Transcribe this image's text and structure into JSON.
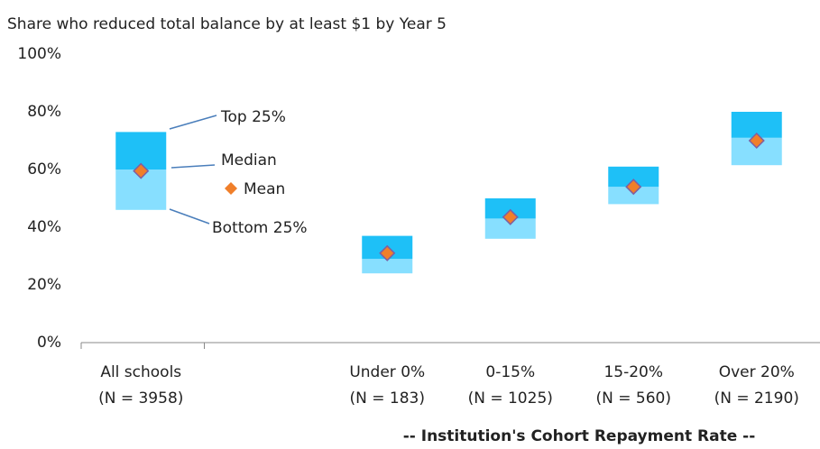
{
  "chart_data": {
    "type": "box",
    "title": "Share who reduced total balance by at least $1 by Year 5",
    "x_label": "-- Institution's Cohort Repayment Rate --",
    "categories": [
      "All schools",
      null,
      "Under 0%",
      "0-15%",
      "15-20%",
      "Over 20%"
    ],
    "category_counts": [
      "(N = 3958)",
      null,
      "(N = 183)",
      "(N = 1025)",
      "(N = 560)",
      "(N = 2190)"
    ],
    "series": [
      {
        "name": "Bottom 25%",
        "color": "#87dfff",
        "values": [
          46,
          null,
          24,
          36,
          48,
          61.5
        ]
      },
      {
        "name": "Median",
        "color": "#1ec0f7",
        "values": [
          60,
          null,
          29,
          43,
          54,
          71
        ]
      },
      {
        "name": "Top 25%",
        "color": "#1ec0f7",
        "values": [
          73,
          null,
          37,
          50,
          61,
          80
        ]
      },
      {
        "name": "Mean",
        "color": "#f07f2a",
        "values": [
          59.5,
          null,
          31,
          43.5,
          54,
          70
        ]
      }
    ],
    "ylim": [
      0,
      100
    ],
    "yticks": [
      {
        "value": 0,
        "label": "0%"
      },
      {
        "value": 20,
        "label": "20%"
      },
      {
        "value": 40,
        "label": "40%"
      },
      {
        "value": 60,
        "label": "60%"
      },
      {
        "value": 80,
        "label": "80%"
      },
      {
        "value": 100,
        "label": "100%"
      }
    ]
  }
}
